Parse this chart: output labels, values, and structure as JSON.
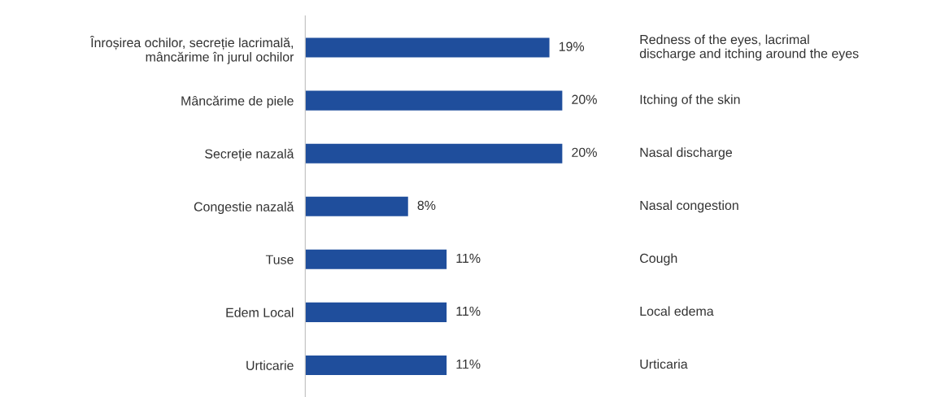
{
  "chart_data": {
    "type": "bar",
    "orientation": "horizontal",
    "data_labels": true,
    "color": "#1f4e9c",
    "categories": [
      "Înroșirea ochilor, secreție lacrimală,\nmâncărime în jurul ochilor",
      "Mâncărime de piele",
      "Secreție nazală",
      "Congestie nazală",
      "Tuse",
      "Edem Local",
      "Urticarie"
    ],
    "values": [
      19,
      20,
      20,
      8,
      11,
      11,
      11
    ],
    "value_labels": [
      "19%",
      "20%",
      "20%",
      "8%",
      "11%",
      "11%",
      "11%"
    ],
    "annotations": [
      "Redness of the eyes, lacrimal\ndischarge and itching around the eyes",
      "Itching of the skin",
      "Nasal discharge",
      "Nasal congestion",
      "Cough",
      "Local edema",
      "Urticaria"
    ]
  }
}
